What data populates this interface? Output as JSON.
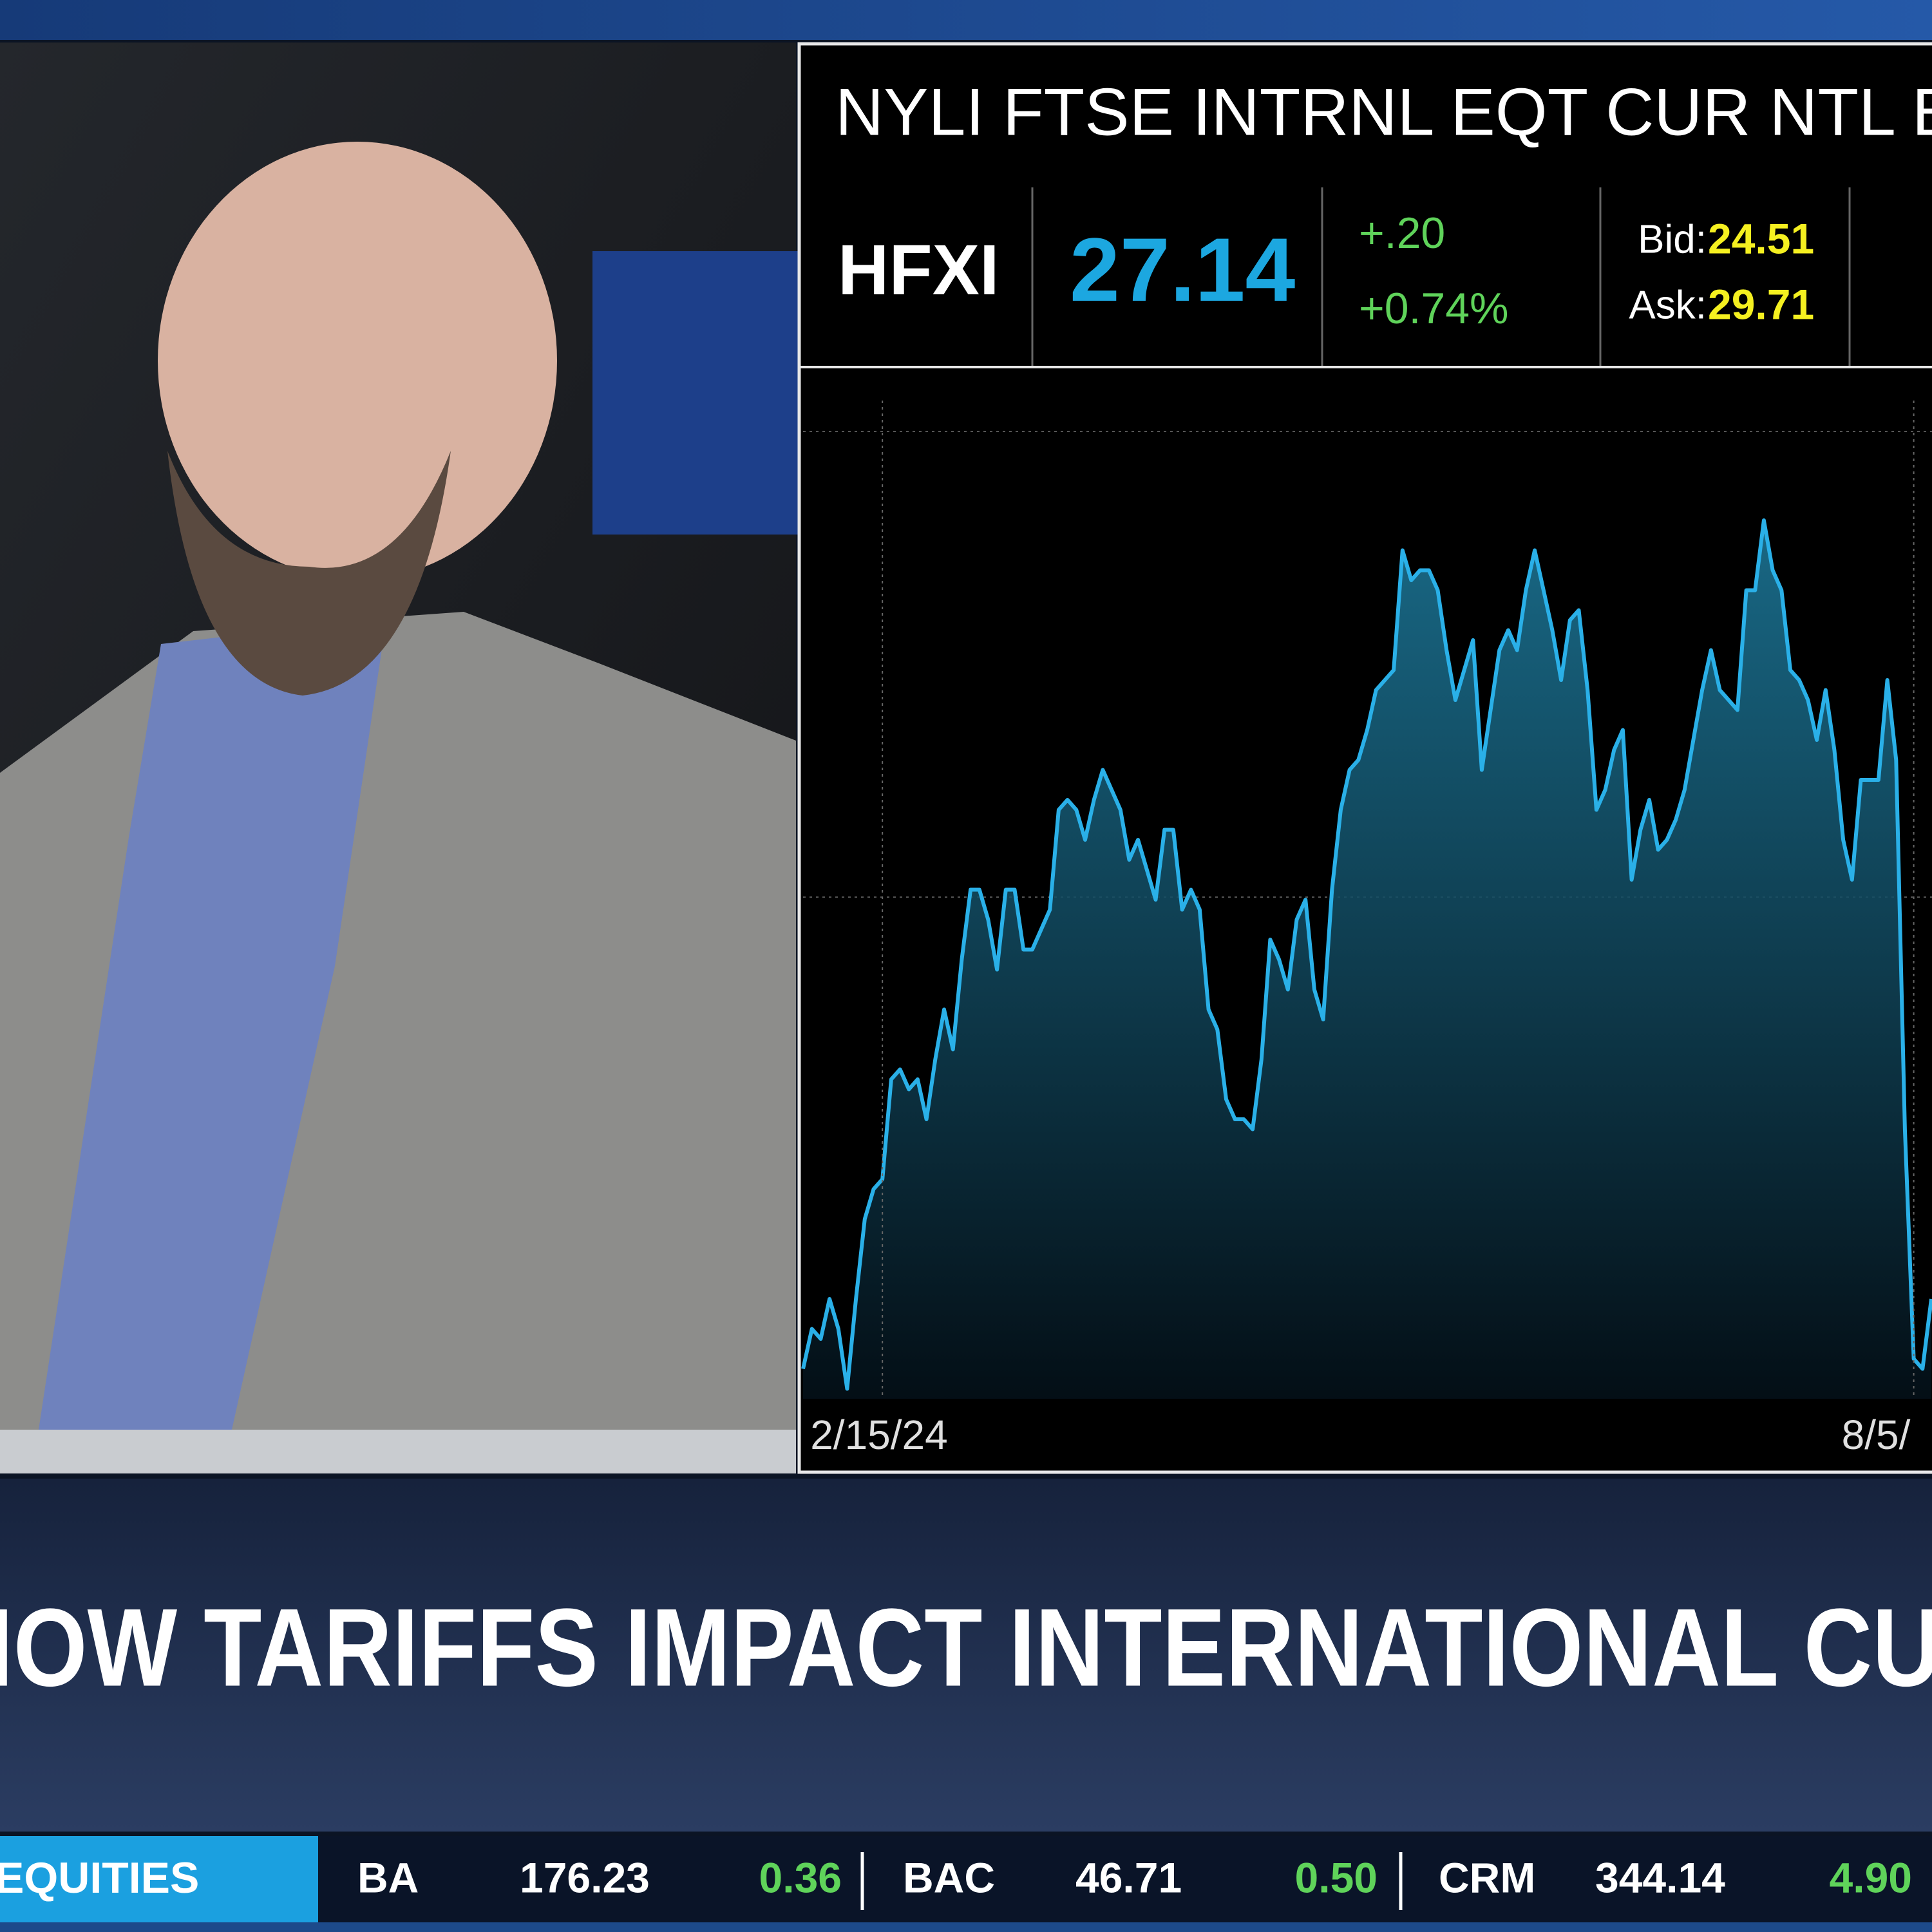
{
  "quote_panel": {
    "name": "NYLI FTSE INTRNL EQT CUR NTL ET",
    "symbol": "HFXI",
    "price": "27.14",
    "change": "+.20",
    "change_pct": "+0.74%",
    "bid_label": "Bid:",
    "bid": "24.51",
    "ask_label": "Ask:",
    "ask": "29.71"
  },
  "chart_data": {
    "type": "area",
    "color": "#2ab0e8",
    "ylim": [
      0,
      100
    ],
    "categories": [
      null,
      null,
      null,
      null,
      null,
      null,
      null,
      null,
      null,
      "2/15/24",
      null,
      null,
      null,
      null,
      null,
      null,
      null,
      null,
      null,
      null,
      null,
      null,
      null,
      null,
      null,
      null,
      null,
      null,
      null,
      null,
      null,
      null,
      null,
      null,
      null,
      null,
      null,
      null,
      null,
      null,
      null,
      null,
      null,
      null,
      null,
      null,
      null,
      null,
      null,
      null,
      null,
      null,
      null,
      null,
      null,
      null,
      null,
      null,
      null,
      null,
      null,
      null,
      null,
      null,
      null,
      null,
      null,
      null,
      null,
      null,
      null,
      null,
      null,
      null,
      null,
      null,
      null,
      null,
      null,
      null,
      null,
      null,
      null,
      null,
      null,
      null,
      null,
      null,
      null,
      null,
      null,
      null,
      null,
      null,
      null,
      null,
      null,
      null,
      null,
      null,
      null,
      null,
      null,
      null,
      null,
      null,
      null,
      null,
      null,
      null,
      null,
      null,
      null,
      null,
      null,
      null,
      null,
      null,
      null,
      null,
      null,
      null,
      null,
      null,
      null,
      null,
      "8/5/",
      null,
      null
    ],
    "values": [
      3,
      7,
      6,
      10,
      7,
      1,
      10,
      18,
      21,
      22,
      32,
      33,
      31,
      32,
      28,
      34,
      39,
      35,
      44,
      51,
      51,
      48,
      43,
      51,
      51,
      45,
      45,
      47,
      49,
      59,
      60,
      59,
      56,
      60,
      63,
      61,
      59,
      54,
      56,
      53,
      50,
      57,
      57,
      49,
      51,
      49,
      39,
      37,
      30,
      28,
      28,
      27,
      34,
      46,
      44,
      41,
      48,
      50,
      41,
      38,
      51,
      59,
      63,
      64,
      67,
      71,
      72,
      73,
      85,
      82,
      83,
      83,
      81,
      75,
      70,
      73,
      76,
      63,
      69,
      75,
      77,
      75,
      81,
      85,
      81,
      77,
      72,
      78,
      79,
      71,
      59,
      61,
      65,
      67,
      52,
      57,
      60,
      55,
      56,
      58,
      61,
      66,
      71,
      75,
      71,
      70,
      69,
      81,
      81,
      88,
      83,
      81,
      73,
      72,
      70,
      66,
      71,
      65,
      56,
      52,
      62,
      62,
      62,
      72,
      64,
      27,
      4,
      3,
      10
    ]
  },
  "headline": "HOW TARIFFS IMPACT INTERNATIONAL CU",
  "ticker": {
    "section": "EQUITIES",
    "quotes": [
      {
        "symbol": "BA",
        "price": "176.23",
        "change": "0.36"
      },
      {
        "symbol": "BAC",
        "price": "46.71",
        "change": "0.50"
      },
      {
        "symbol": "CRM",
        "price": "344.14",
        "change": "4.90"
      }
    ]
  }
}
